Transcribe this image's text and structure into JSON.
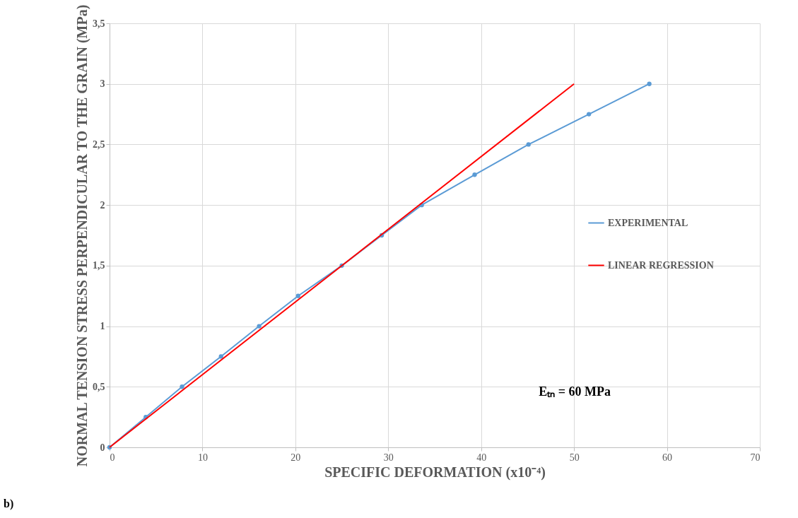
{
  "chart_data": {
    "type": "line",
    "xlabel": "SPECIFIC DEFORMATION (x10⁻⁴)",
    "ylabel": "NORMAL TENSION STRESS PERPENDICULAR TO THE GRAIN (MPa)",
    "series": [
      {
        "name": "EXPERIMENTAL",
        "color": "#5b9bd5",
        "x": [
          0,
          3.9,
          7.8,
          12.0,
          16.1,
          20.3,
          25.0,
          29.3,
          33.6,
          39.3,
          45.1,
          51.6,
          58.1
        ],
        "values": [
          0,
          0.25,
          0.5,
          0.75,
          1.0,
          1.25,
          1.5,
          1.75,
          2.0,
          2.25,
          2.5,
          2.75,
          3.0
        ]
      },
      {
        "name": "LINEAR REGRESSION",
        "color": "#ff0000",
        "marker": "none",
        "x": [
          0,
          50
        ],
        "values": [
          0,
          3.0
        ]
      }
    ],
    "xlim": [
      0,
      70
    ],
    "xticks": [
      0,
      10,
      20,
      30,
      40,
      50,
      60,
      70
    ],
    "ylim": [
      0,
      3.5
    ],
    "yticks": [
      0,
      {
        "value": 0.5,
        "label": "0,5"
      },
      1,
      {
        "value": 1.5,
        "label": "1,5"
      },
      2,
      {
        "value": 2.5,
        "label": "2,5"
      },
      3,
      {
        "value": 3.5,
        "label": "3,5"
      }
    ],
    "grid": true,
    "legend": "right",
    "marker": "circle",
    "annotations": [
      "Eₜₙ = 60 MPa",
      "b)"
    ]
  }
}
